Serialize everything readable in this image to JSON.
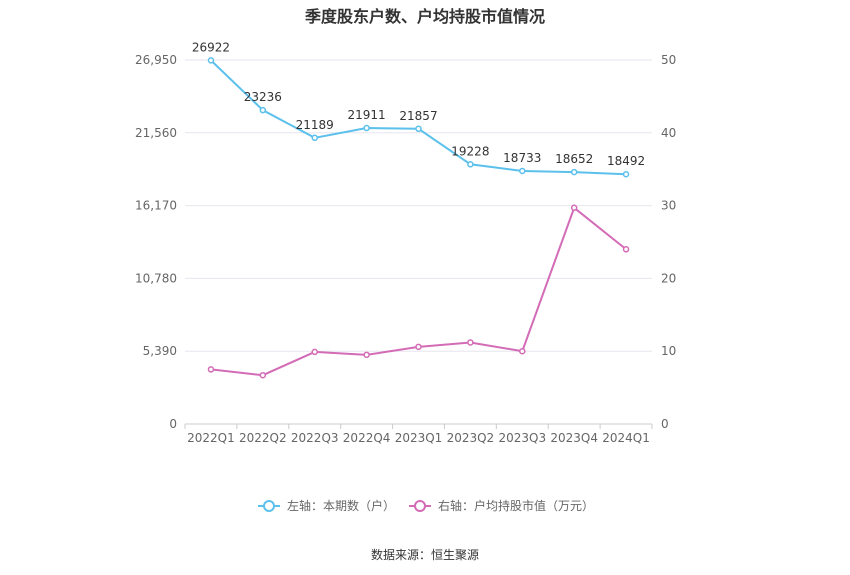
{
  "chart_data": {
    "type": "line",
    "title": "季度股东户数、户均持股市值情况",
    "categories": [
      "2022Q1",
      "2022Q2",
      "2022Q3",
      "2022Q4",
      "2023Q1",
      "2023Q2",
      "2023Q3",
      "2023Q4",
      "2024Q1"
    ],
    "y_left": {
      "ticks": [
        "0",
        "5,390",
        "10,780",
        "16,170",
        "21,560",
        "26,950"
      ],
      "range": [
        0,
        26950
      ]
    },
    "y_right": {
      "ticks": [
        "0",
        "10",
        "20",
        "30",
        "40",
        "50"
      ],
      "range": [
        0,
        50
      ]
    },
    "series": [
      {
        "name": "左轴：本期数（户）",
        "axis": "left",
        "color": "#5bc0eb",
        "values": [
          26922,
          23236,
          21189,
          21911,
          21857,
          19228,
          18733,
          18652,
          18492
        ],
        "labels": [
          "26922",
          "23236",
          "21189",
          "21911",
          "21857",
          "19228",
          "18733",
          "18652",
          "18492"
        ]
      },
      {
        "name": "右轴：户均持股市值（万元）",
        "axis": "right",
        "color": "#d36bb6",
        "values": [
          7.5,
          6.7,
          9.9,
          9.5,
          10.6,
          11.2,
          10.0,
          29.7,
          24.0
        ]
      }
    ],
    "grid": true,
    "legend": "bottom-center"
  },
  "source": "数据来源：恒生聚源"
}
